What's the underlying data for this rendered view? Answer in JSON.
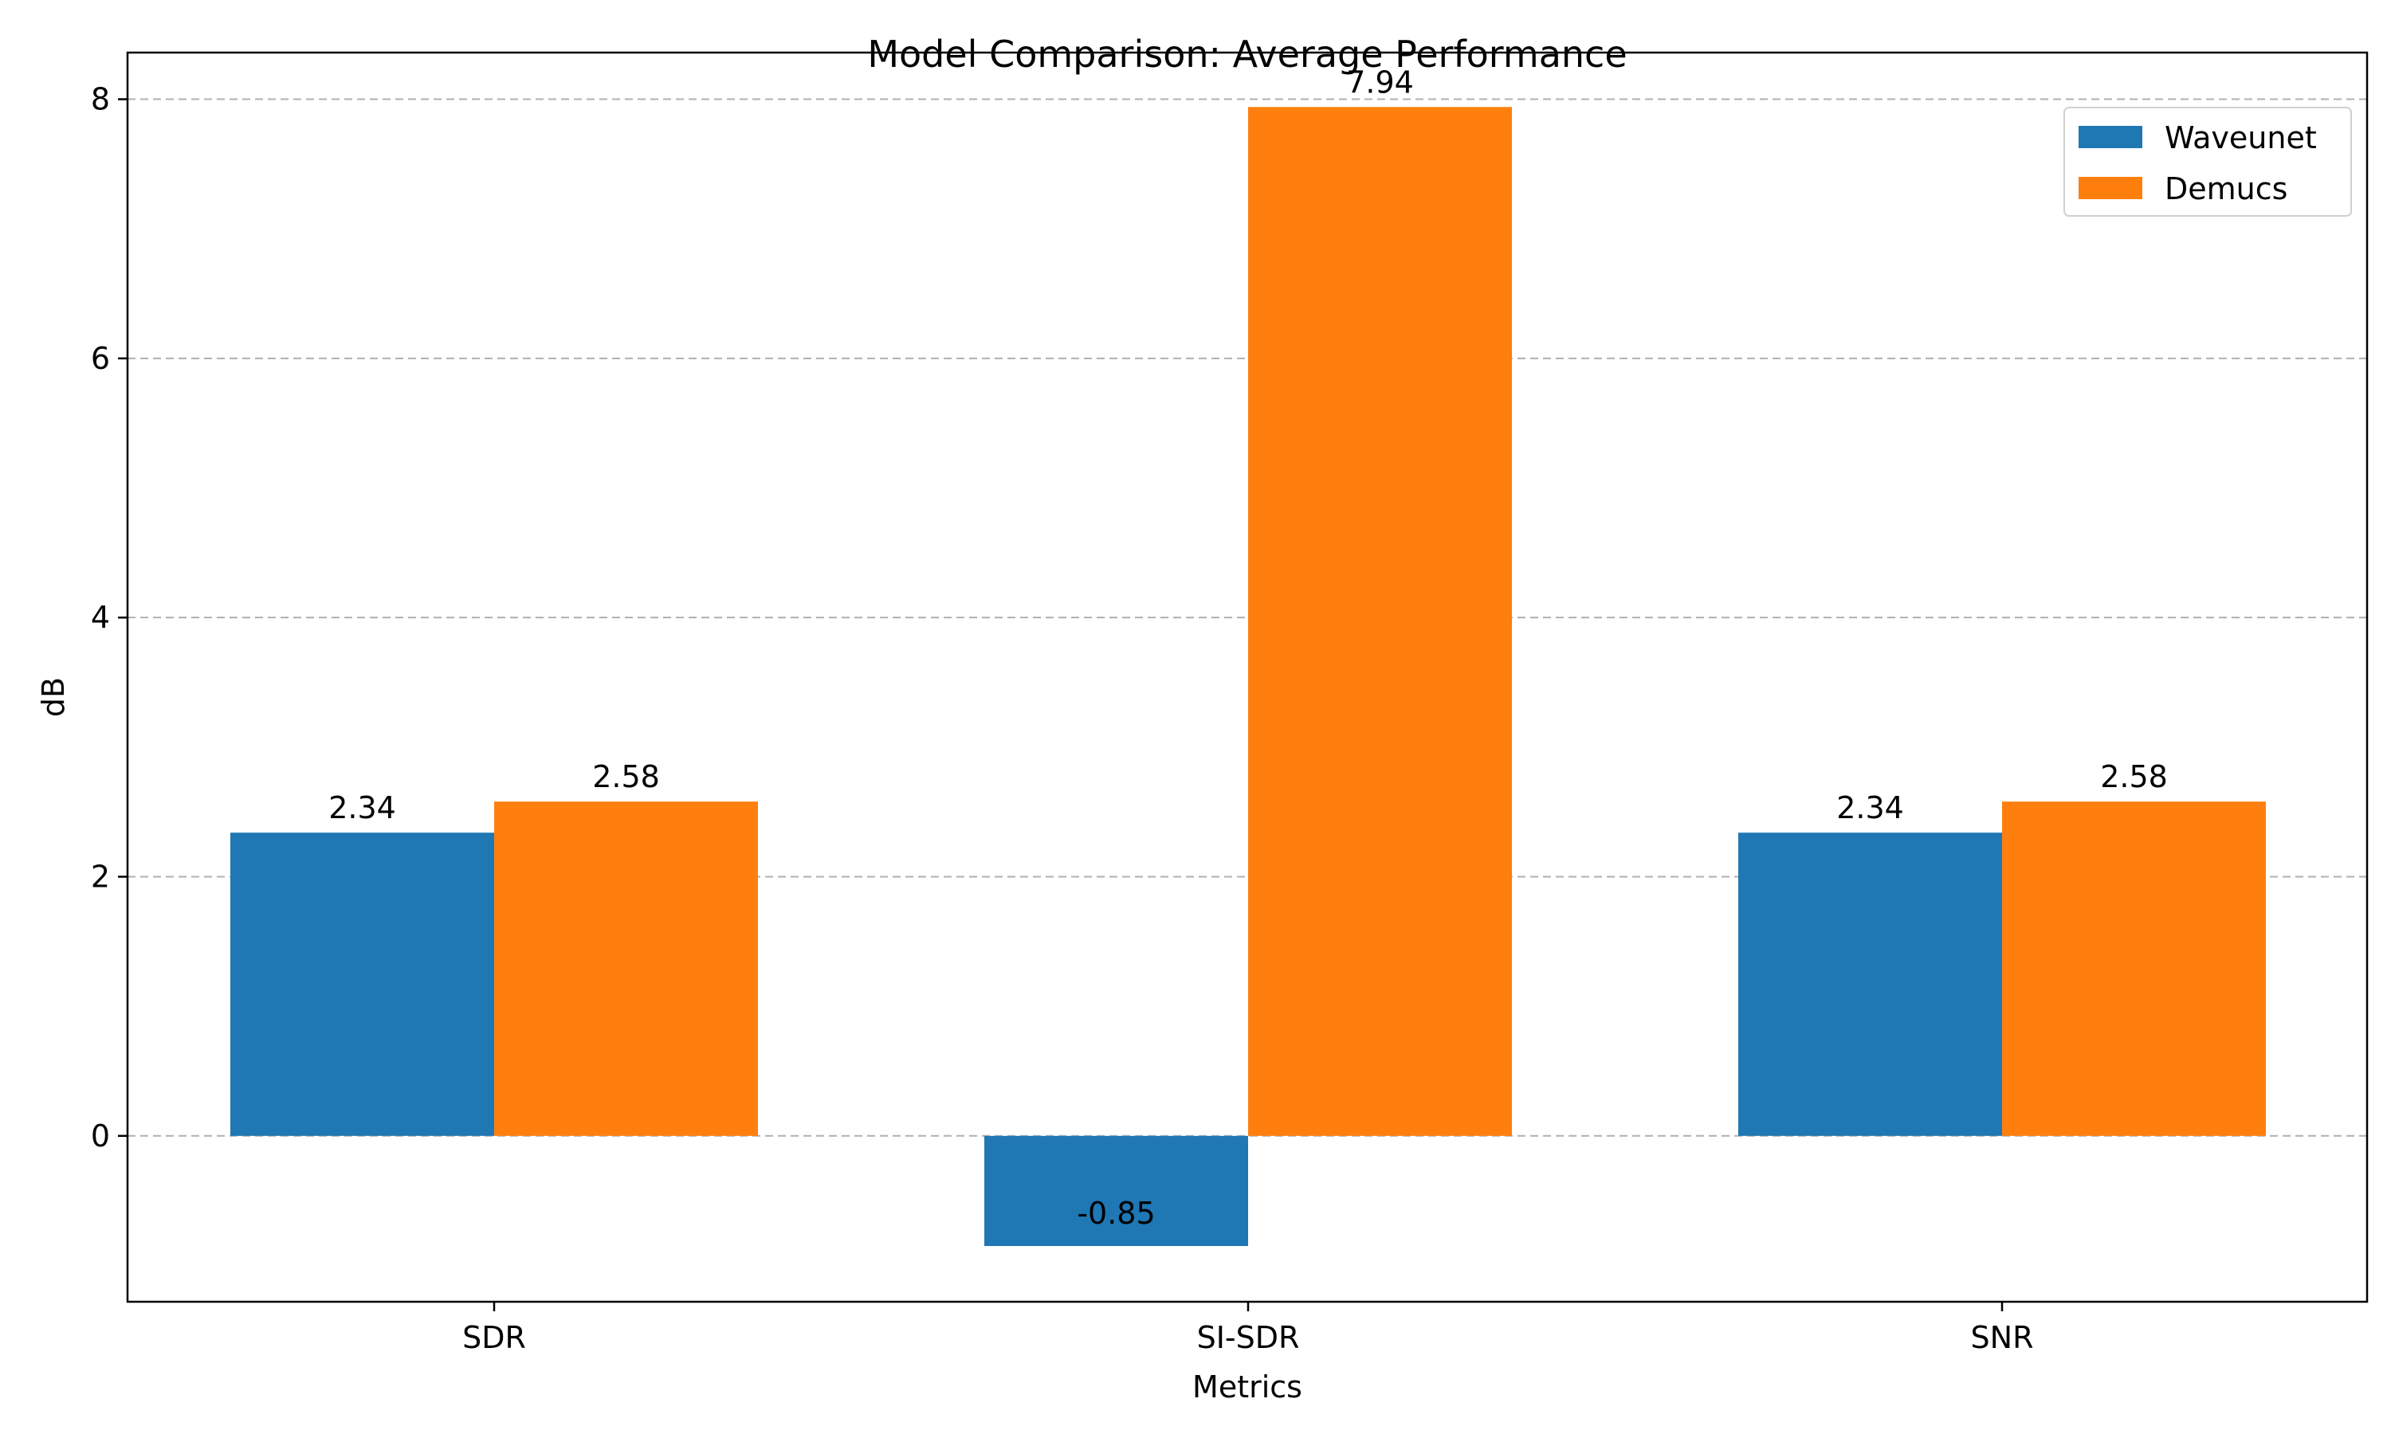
{
  "chart_data": {
    "type": "bar",
    "title": "Model Comparison: Average Performance",
    "xlabel": "Metrics",
    "ylabel": "dB",
    "categories": [
      "SDR",
      "SI-SDR",
      "SNR"
    ],
    "series": [
      {
        "name": "Waveunet",
        "color": "#1f77b4",
        "values": [
          2.34,
          -0.85,
          2.34
        ],
        "labels": [
          "2.34",
          "-0.85",
          "2.34"
        ]
      },
      {
        "name": "Demucs",
        "color": "#ff7f0e",
        "values": [
          2.58,
          7.94,
          2.58
        ],
        "labels": [
          "2.58",
          "7.94",
          "2.58"
        ]
      }
    ],
    "ylim": [
      -1.28,
      8.36
    ],
    "yticks": [
      0,
      2,
      4,
      6,
      8
    ],
    "ytick_labels": [
      "0",
      "2",
      "4",
      "6",
      "8"
    ],
    "grid": "y dashed",
    "legend_position": "top-right"
  }
}
